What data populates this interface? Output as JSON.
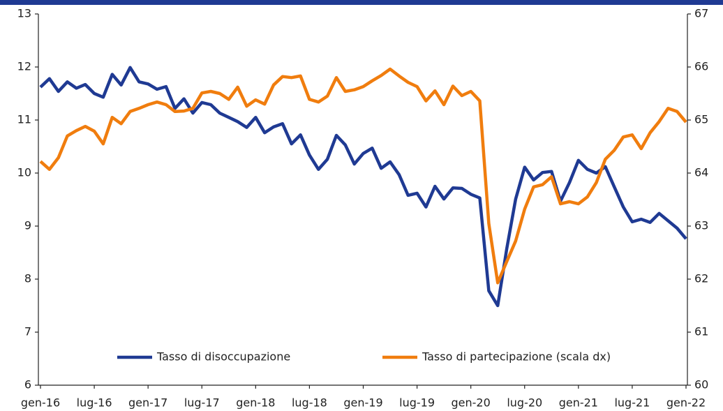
{
  "chart_data": {
    "type": "line",
    "categories": [
      "gen-16",
      null,
      null,
      null,
      null,
      null,
      "lug-16",
      null,
      null,
      null,
      null,
      null,
      "gen-17",
      null,
      null,
      null,
      null,
      null,
      "lug-17",
      null,
      null,
      null,
      null,
      null,
      "gen-18",
      null,
      null,
      null,
      null,
      null,
      "lug-18",
      null,
      null,
      null,
      null,
      null,
      "gen-19",
      null,
      null,
      null,
      null,
      null,
      "lug-19",
      null,
      null,
      null,
      null,
      null,
      "gen-20",
      null,
      null,
      null,
      null,
      null,
      "lug-20",
      null,
      null,
      null,
      null,
      null,
      "gen-21",
      null,
      null,
      null,
      null,
      null,
      "lug-21",
      null,
      null,
      null,
      null,
      null,
      "gen-22"
    ],
    "series": [
      {
        "name": "Tasso di disoccupazione",
        "color": "#1f3a93",
        "values": [
          11.62,
          11.78,
          11.54,
          11.72,
          11.6,
          11.67,
          11.5,
          11.43,
          11.86,
          11.66,
          11.99,
          11.72,
          11.68,
          11.58,
          11.63,
          11.22,
          11.4,
          11.13,
          11.33,
          11.29,
          11.13,
          11.05,
          10.97,
          10.86,
          11.05,
          10.76,
          10.87,
          10.93,
          10.55,
          10.72,
          10.34,
          10.07,
          10.26,
          10.71,
          10.53,
          10.17,
          10.37,
          10.47,
          10.09,
          10.21,
          9.97,
          9.58,
          9.62,
          9.36,
          9.75,
          9.51,
          9.72,
          9.71,
          9.6,
          9.53,
          7.78,
          7.5,
          8.57,
          9.51,
          10.11,
          9.87,
          10.01,
          10.03,
          9.47,
          9.82,
          10.24,
          10.07,
          10.0,
          10.12,
          9.74,
          9.36,
          9.08,
          9.13,
          9.07,
          9.24,
          9.1,
          8.96,
          8.76
        ]
      },
      {
        "name": "Tasso di partecipazione (scala dx)",
        "color": "#f07d0e",
        "axis": "y2",
        "values": [
          64.22,
          64.07,
          64.29,
          64.7,
          64.8,
          64.88,
          64.79,
          64.55,
          65.05,
          64.93,
          65.16,
          65.22,
          65.29,
          65.34,
          65.29,
          65.16,
          65.17,
          65.22,
          65.51,
          65.54,
          65.5,
          65.39,
          65.62,
          65.26,
          65.38,
          65.3,
          65.66,
          65.82,
          65.8,
          65.83,
          65.39,
          65.34,
          65.45,
          65.8,
          65.54,
          65.57,
          65.63,
          65.74,
          65.84,
          65.96,
          65.83,
          65.71,
          65.63,
          65.36,
          65.55,
          65.29,
          65.64,
          65.46,
          65.54,
          65.36,
          63.05,
          61.93,
          62.33,
          62.72,
          63.32,
          63.74,
          63.78,
          63.93,
          63.42,
          63.46,
          63.42,
          63.55,
          63.82,
          64.26,
          64.43,
          64.68,
          64.72,
          64.46,
          64.76,
          64.97,
          65.22,
          65.16,
          64.96
        ]
      }
    ],
    "ylim": [
      6,
      13
    ],
    "yticks": [
      6,
      7,
      8,
      9,
      10,
      11,
      12,
      13
    ],
    "y2lim": [
      60,
      67
    ],
    "y2ticks": [
      60,
      61,
      62,
      63,
      64,
      65,
      66,
      67
    ],
    "legend": "bottom"
  }
}
